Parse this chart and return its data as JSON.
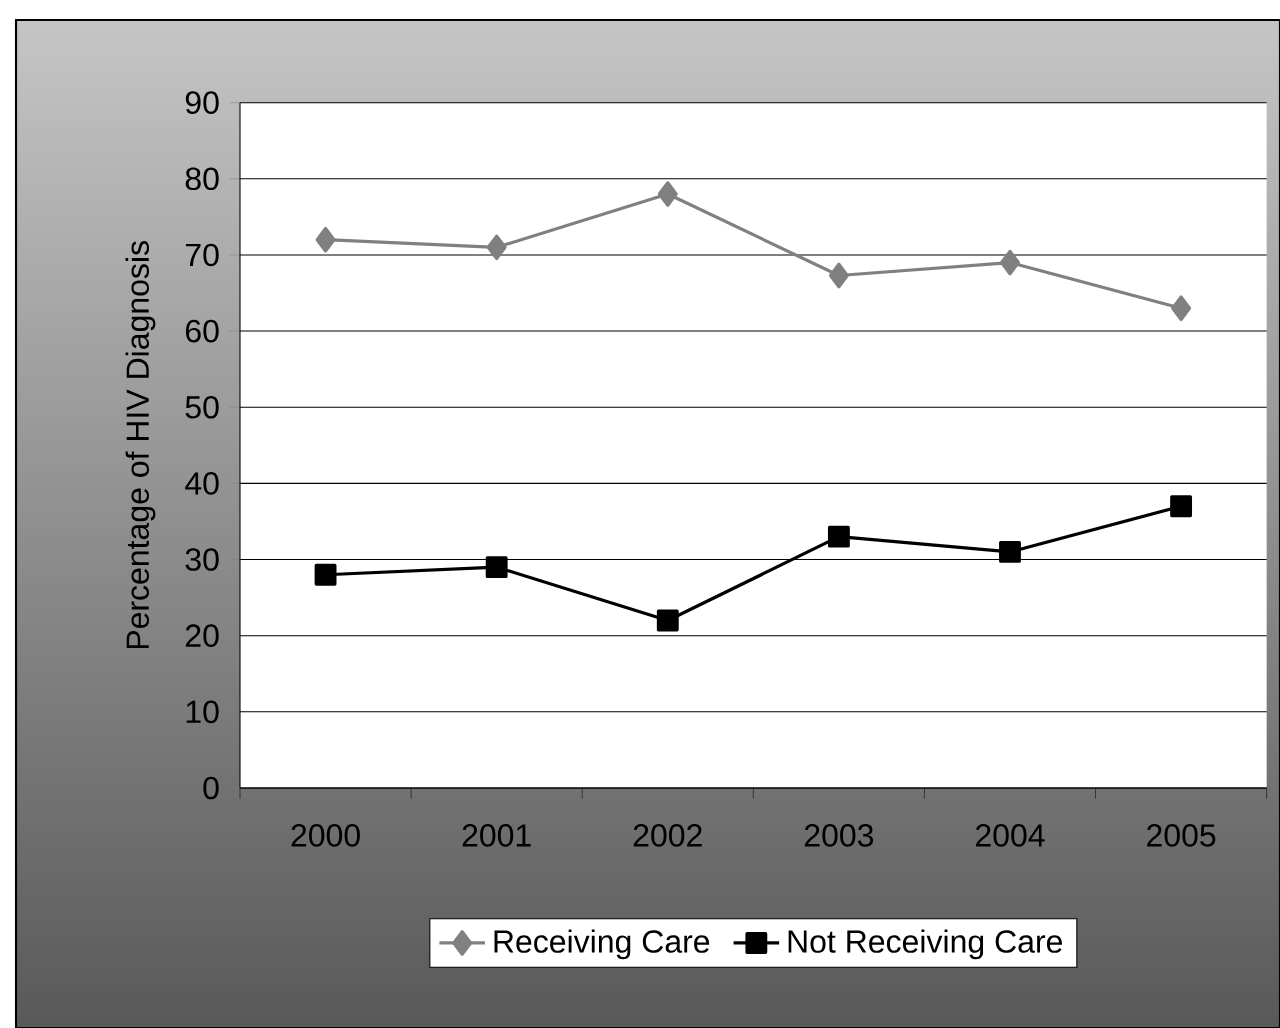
{
  "chart_data": {
    "type": "line",
    "categories": [
      "2000",
      "2001",
      "2002",
      "2003",
      "2004",
      "2005"
    ],
    "ylabel": "Percentage of HIV Diagnosis",
    "ylim": [
      0,
      90
    ],
    "yticks": [
      0,
      10,
      20,
      30,
      40,
      50,
      60,
      70,
      80,
      90
    ],
    "grid": "y",
    "legend": "bottom",
    "series": [
      {
        "name": "Receiving Care",
        "color": "#808080",
        "marker": "diamond",
        "values": [
          72,
          71,
          78,
          67.3,
          69,
          63
        ]
      },
      {
        "name": "Not Receiving Care",
        "color": "#000000",
        "marker": "square",
        "values": [
          28,
          29,
          22,
          33,
          31,
          37
        ]
      }
    ]
  }
}
